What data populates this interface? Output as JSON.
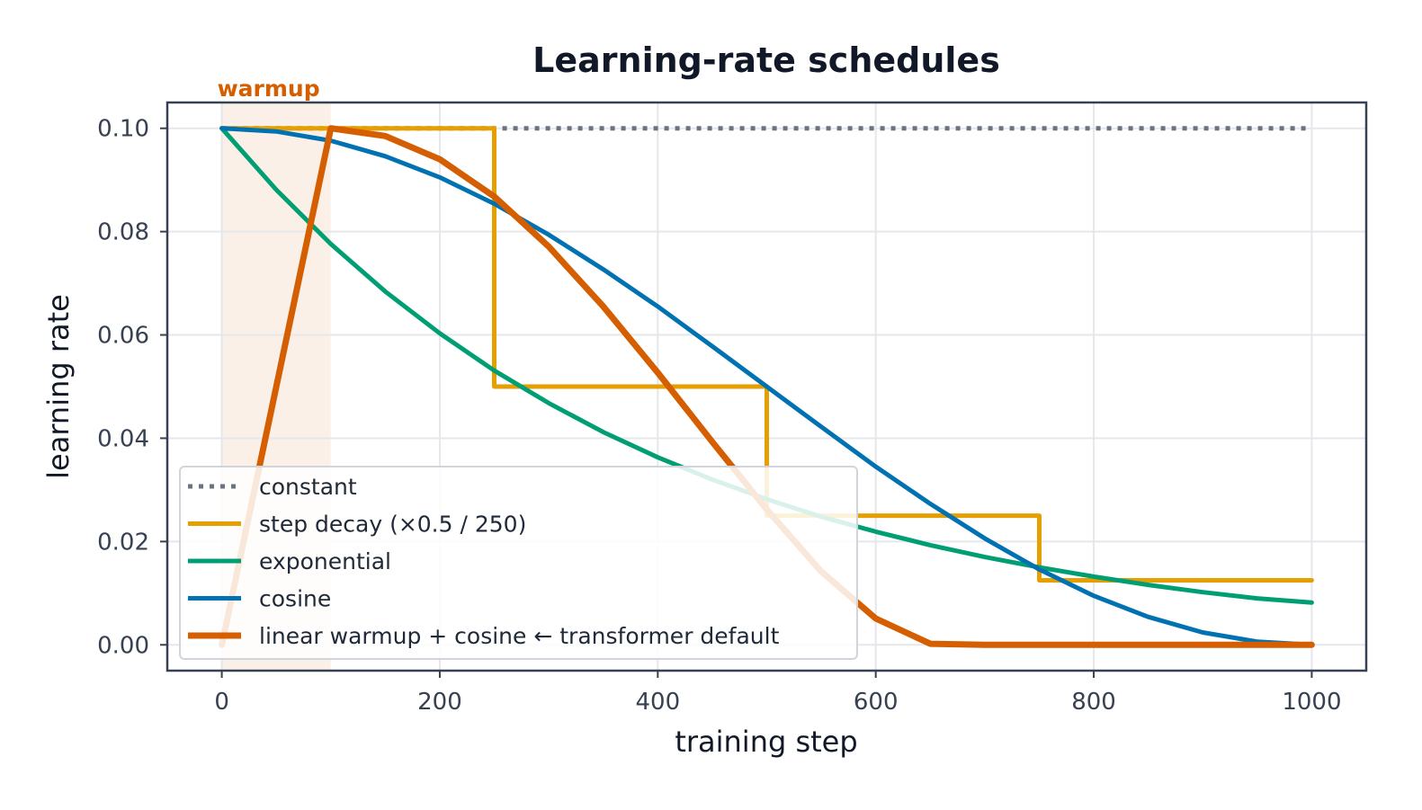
{
  "chart_data": {
    "type": "line",
    "title": "Learning-rate schedules",
    "xlabel": "training step",
    "ylabel": "learning rate",
    "xlim": [
      -50,
      1050
    ],
    "ylim": [
      -0.005,
      0.105
    ],
    "x_ticks": [
      0,
      200,
      400,
      600,
      800,
      1000
    ],
    "x_tick_labels": [
      "0",
      "200",
      "400",
      "600",
      "800",
      "1000"
    ],
    "y_ticks": [
      0.0,
      0.02,
      0.04,
      0.06,
      0.08,
      0.1
    ],
    "y_tick_labels": [
      "0.00",
      "0.02",
      "0.04",
      "0.06",
      "0.08",
      "0.10"
    ],
    "grid": true,
    "legend_position": "lower-left",
    "annotation": {
      "text": "warmup",
      "x_range": [
        0,
        100
      ],
      "color": "#d55e00"
    },
    "series": [
      {
        "name": "constant",
        "color": "#6b7280",
        "style": "dotted",
        "x": [
          0,
          1000
        ],
        "y": [
          0.1,
          0.1
        ]
      },
      {
        "name": "step decay (×0.5 / 250)",
        "color": "#e69f00",
        "style": "step",
        "x": [
          0,
          250,
          250,
          500,
          500,
          750,
          750,
          1000
        ],
        "y": [
          0.1,
          0.1,
          0.05,
          0.05,
          0.025,
          0.025,
          0.0125,
          0.0125
        ]
      },
      {
        "name": "exponential",
        "color": "#009e73",
        "style": "solid",
        "x": [
          0,
          50,
          100,
          150,
          200,
          250,
          300,
          350,
          400,
          450,
          500,
          550,
          600,
          650,
          700,
          750,
          800,
          850,
          900,
          950,
          1000
        ],
        "y": [
          0.1,
          0.0881,
          0.0776,
          0.0684,
          0.0603,
          0.0531,
          0.0468,
          0.0412,
          0.0363,
          0.032,
          0.0282,
          0.0248,
          0.0219,
          0.0193,
          0.017,
          0.015,
          0.0132,
          0.0116,
          0.0102,
          0.009,
          0.0082
        ]
      },
      {
        "name": "cosine",
        "color": "#0072b2",
        "style": "solid",
        "x": [
          0,
          50,
          100,
          150,
          200,
          250,
          300,
          350,
          400,
          450,
          500,
          550,
          600,
          650,
          700,
          750,
          800,
          850,
          900,
          950,
          1000
        ],
        "y": [
          0.1,
          0.0994,
          0.0976,
          0.0946,
          0.0905,
          0.0854,
          0.0794,
          0.0727,
          0.0655,
          0.0578,
          0.05,
          0.0422,
          0.0345,
          0.0273,
          0.0206,
          0.0146,
          0.0095,
          0.0054,
          0.0024,
          0.0006,
          0.0
        ]
      },
      {
        "name": "linear warmup + cosine",
        "legend_note": "← transformer default",
        "color": "#d55e00",
        "style": "bold",
        "x": [
          0,
          100,
          150,
          200,
          250,
          300,
          350,
          400,
          450,
          500,
          550,
          600,
          650,
          700,
          750,
          800,
          850,
          900,
          950,
          1000
        ],
        "y": [
          0.0,
          0.1,
          0.0985,
          0.094,
          0.0868,
          0.0771,
          0.0655,
          0.0527,
          0.0393,
          0.0262,
          0.0142,
          0.0051,
          0.0002,
          -0.0,
          0.0,
          0.0,
          0.0,
          0.0,
          0.0,
          0.0
        ]
      }
    ]
  }
}
